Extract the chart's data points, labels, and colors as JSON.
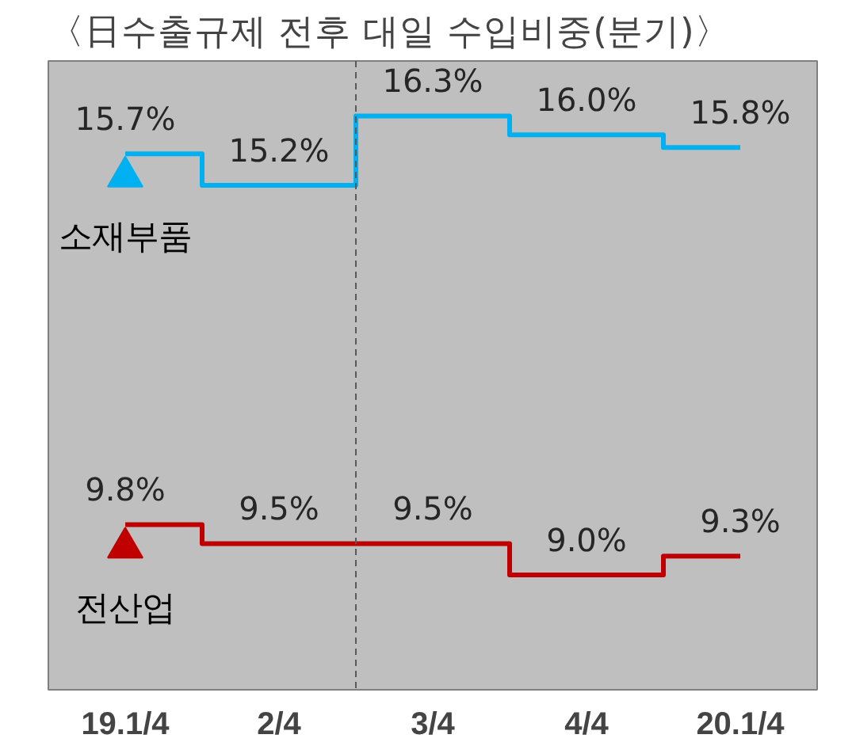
{
  "chart_data": {
    "type": "step",
    "title": "〈日수출규제 전후 대일 수입비중(분기)〉",
    "categories": [
      "19.1/4",
      "2/4",
      "3/4",
      "4/4",
      "20.1/4"
    ],
    "series": [
      {
        "name": "소재부품",
        "color": "#00b0f0",
        "values": [
          15.7,
          15.2,
          16.3,
          16.0,
          15.8
        ],
        "value_labels": [
          "15.7%",
          "15.2%",
          "16.3%",
          "16.0%",
          "15.8%"
        ]
      },
      {
        "name": "전산업",
        "color": "#c00000",
        "values": [
          9.8,
          9.5,
          9.5,
          9.0,
          9.3
        ],
        "value_labels": [
          "9.8%",
          "9.5%",
          "9.5%",
          "9.0%",
          "9.3%"
        ]
      }
    ],
    "legend": "left",
    "grid": false
  }
}
